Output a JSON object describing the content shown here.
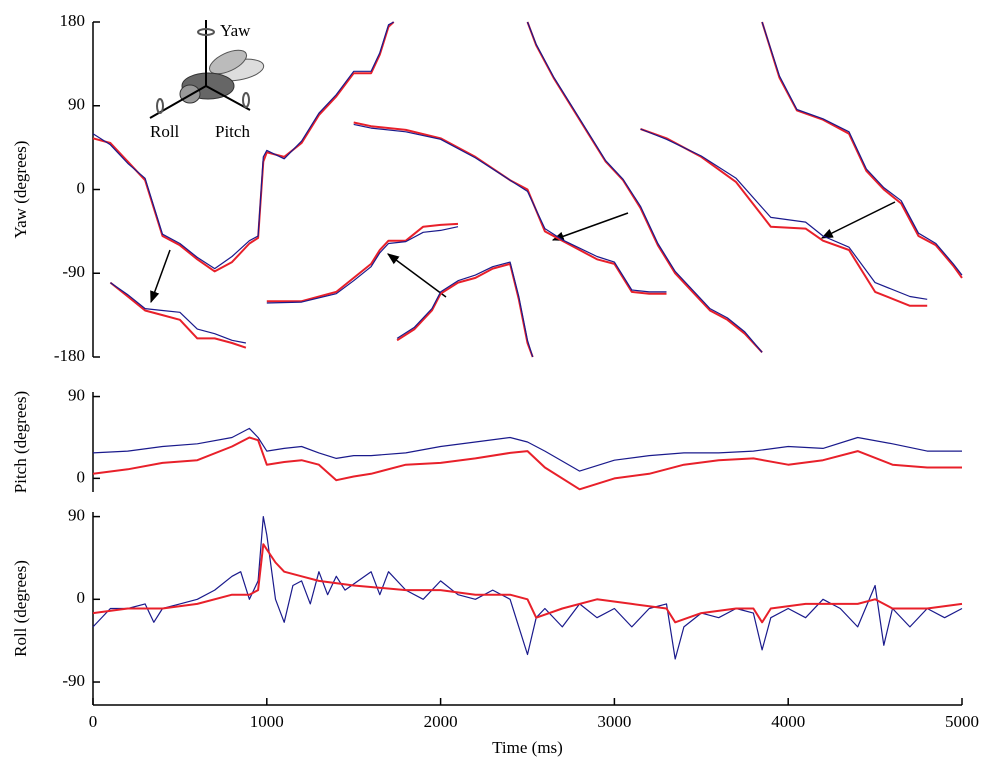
{
  "chart_data": [
    {
      "type": "line",
      "ylabel": "Yaw (degrees)",
      "annotations": [
        "Yaw",
        "Roll",
        "Pitch"
      ],
      "xlim": [
        0,
        5000
      ],
      "ylim": [
        -180,
        180
      ],
      "yticks": [
        180,
        90,
        0,
        -90,
        -180
      ],
      "series": [
        {
          "color": "#e8202a",
          "x": [
            0,
            100,
            200,
            300,
            350,
            400,
            500,
            600,
            700,
            800,
            900,
            950,
            980,
            1000,
            1100,
            1200,
            1300,
            1400,
            1500,
            1600,
            1650,
            1700,
            1730
          ],
          "values": [
            55,
            50,
            30,
            10,
            -20,
            -50,
            -60,
            -75,
            -88,
            -78,
            -58,
            -52,
            30,
            40,
            35,
            50,
            80,
            100,
            125,
            125,
            145,
            175,
            180
          ]
        },
        {
          "color": "#1a1a8c",
          "x": [
            0,
            100,
            200,
            300,
            350,
            400,
            500,
            600,
            700,
            800,
            900,
            950,
            980,
            1000,
            1100,
            1200,
            1300,
            1400,
            1500,
            1600,
            1650,
            1700,
            1730
          ],
          "values": [
            60,
            48,
            28,
            12,
            -18,
            -48,
            -58,
            -73,
            -85,
            -72,
            -55,
            -50,
            35,
            42,
            33,
            52,
            82,
            102,
            127,
            127,
            147,
            177,
            180
          ]
        },
        {
          "color": "#e8202a",
          "x": [
            100,
            200,
            300,
            400,
            500,
            600,
            700,
            800,
            880
          ],
          "values": [
            -100,
            -115,
            -130,
            -135,
            -140,
            -160,
            -160,
            -165,
            -170
          ]
        },
        {
          "color": "#1a1a8c",
          "x": [
            100,
            200,
            300,
            400,
            500,
            600,
            700,
            800,
            880
          ],
          "values": [
            -100,
            -113,
            -128,
            -130,
            -132,
            -150,
            -155,
            -162,
            -165
          ]
        },
        {
          "color": "#e8202a",
          "x": [
            1000,
            1200,
            1400,
            1500,
            1600,
            1650,
            1700,
            1800,
            1900,
            2000,
            2100
          ],
          "values": [
            -120,
            -120,
            -110,
            -95,
            -80,
            -65,
            -55,
            -55,
            -40,
            -38,
            -37
          ]
        },
        {
          "color": "#1a1a8c",
          "x": [
            1000,
            1200,
            1400,
            1500,
            1600,
            1650,
            1700,
            1800,
            1900,
            2000,
            2100
          ],
          "values": [
            -122,
            -121,
            -112,
            -98,
            -83,
            -68,
            -58,
            -56,
            -46,
            -44,
            -40
          ]
        },
        {
          "color": "#e8202a",
          "x": [
            1750,
            1850,
            1950,
            2000,
            2100,
            2200,
            2300,
            2400,
            2450,
            2500,
            2530
          ],
          "values": [
            -162,
            -150,
            -130,
            -112,
            -100,
            -95,
            -85,
            -80,
            -118,
            -165,
            -180
          ]
        },
        {
          "color": "#1a1a8c",
          "x": [
            1750,
            1850,
            1950,
            2000,
            2100,
            2200,
            2300,
            2400,
            2450,
            2500,
            2530
          ],
          "values": [
            -160,
            -148,
            -128,
            -110,
            -98,
            -92,
            -83,
            -78,
            -115,
            -162,
            -180
          ]
        },
        {
          "color": "#e8202a",
          "x": [
            1500,
            1600,
            1800,
            2000,
            2200,
            2400,
            2500,
            2600,
            2700,
            2900,
            3000,
            3100,
            3200,
            3300
          ],
          "values": [
            72,
            68,
            64,
            55,
            35,
            10,
            0,
            -45,
            -55,
            -75,
            -80,
            -110,
            -112,
            -112
          ]
        },
        {
          "color": "#1a1a8c",
          "x": [
            1500,
            1600,
            1800,
            2000,
            2200,
            2400,
            2500,
            2600,
            2700,
            2900,
            3000,
            3100,
            3200,
            3300
          ],
          "values": [
            70,
            66,
            62,
            54,
            34,
            10,
            -2,
            -42,
            -54,
            -72,
            -78,
            -108,
            -110,
            -110
          ]
        },
        {
          "color": "#e8202a",
          "x": [
            2500,
            2550,
            2650,
            2750,
            2850,
            2950,
            3050,
            3150,
            3250,
            3350,
            3450,
            3550,
            3650,
            3750,
            3850
          ],
          "values": [
            180,
            155,
            120,
            90,
            60,
            30,
            10,
            -20,
            -60,
            -90,
            -110,
            -130,
            -140,
            -155,
            -175
          ]
        },
        {
          "color": "#1a1a8c",
          "x": [
            2500,
            2550,
            2650,
            2750,
            2850,
            2950,
            3050,
            3150,
            3250,
            3350,
            3450,
            3550,
            3650,
            3750,
            3850
          ],
          "values": [
            180,
            156,
            121,
            91,
            61,
            31,
            11,
            -18,
            -58,
            -88,
            -108,
            -128,
            -138,
            -153,
            -175
          ]
        },
        {
          "color": "#e8202a",
          "x": [
            3150,
            3300,
            3500,
            3700,
            3900,
            4100,
            4200,
            4350,
            4500,
            4700,
            4800
          ],
          "values": [
            65,
            55,
            35,
            8,
            -40,
            -42,
            -55,
            -65,
            -110,
            -125,
            -125
          ]
        },
        {
          "color": "#1a1a8c",
          "x": [
            3150,
            3300,
            3500,
            3700,
            3900,
            4100,
            4200,
            4350,
            4500,
            4700,
            4800
          ],
          "values": [
            65,
            54,
            36,
            12,
            -30,
            -35,
            -50,
            -62,
            -100,
            -115,
            -118
          ]
        },
        {
          "color": "#e8202a",
          "x": [
            3850,
            3950,
            4050,
            4200,
            4350,
            4450,
            4550,
            4650,
            4750,
            4850,
            4950,
            5000
          ],
          "values": [
            180,
            120,
            85,
            75,
            60,
            20,
            0,
            -15,
            -50,
            -60,
            -82,
            -95
          ]
        },
        {
          "color": "#1a1a8c",
          "x": [
            3850,
            3950,
            4050,
            4200,
            4350,
            4450,
            4550,
            4650,
            4750,
            4850,
            4950,
            5000
          ],
          "values": [
            180,
            122,
            86,
            76,
            62,
            22,
            2,
            -12,
            -47,
            -58,
            -80,
            -92
          ]
        }
      ]
    },
    {
      "type": "line",
      "ylabel": "Pitch (degrees)",
      "xlim": [
        0,
        5000
      ],
      "ylim": [
        -15,
        95
      ],
      "yticks": [
        90,
        0
      ],
      "series": [
        {
          "color": "#1a1a8c",
          "x": [
            0,
            200,
            400,
            600,
            800,
            900,
            950,
            1000,
            1100,
            1200,
            1300,
            1400,
            1500,
            1600,
            1800,
            2000,
            2200,
            2400,
            2500,
            2600,
            2800,
            3000,
            3200,
            3400,
            3600,
            3800,
            4000,
            4200,
            4400,
            4600,
            4800,
            5000
          ],
          "values": [
            28,
            30,
            35,
            38,
            45,
            55,
            45,
            30,
            33,
            35,
            28,
            22,
            25,
            25,
            28,
            35,
            40,
            45,
            40,
            30,
            8,
            20,
            25,
            28,
            28,
            30,
            35,
            33,
            45,
            38,
            30,
            30
          ]
        },
        {
          "color": "#e8202a",
          "x": [
            0,
            200,
            400,
            600,
            800,
            900,
            950,
            1000,
            1100,
            1200,
            1300,
            1400,
            1500,
            1600,
            1800,
            2000,
            2200,
            2400,
            2500,
            2600,
            2800,
            3000,
            3200,
            3400,
            3600,
            3800,
            4000,
            4200,
            4400,
            4600,
            4800,
            5000
          ],
          "values": [
            5,
            10,
            17,
            20,
            35,
            45,
            42,
            15,
            18,
            20,
            15,
            -2,
            2,
            5,
            15,
            17,
            22,
            28,
            30,
            12,
            -12,
            0,
            5,
            15,
            20,
            22,
            15,
            20,
            30,
            15,
            12,
            12
          ]
        }
      ]
    },
    {
      "type": "line",
      "ylabel": "Roll (degrees)",
      "xlabel": "Time (ms)",
      "xlim": [
        0,
        5000
      ],
      "ylim": [
        -115,
        95
      ],
      "yticks": [
        90,
        0,
        -90
      ],
      "xticks": [
        0,
        1000,
        2000,
        3000,
        4000,
        5000
      ],
      "series": [
        {
          "color": "#1a1a8c",
          "x": [
            0,
            100,
            200,
            300,
            350,
            400,
            500,
            600,
            700,
            800,
            850,
            900,
            950,
            980,
            1000,
            1050,
            1100,
            1150,
            1200,
            1250,
            1300,
            1350,
            1400,
            1450,
            1600,
            1650,
            1700,
            1800,
            1900,
            2000,
            2100,
            2200,
            2300,
            2400,
            2450,
            2500,
            2550,
            2600,
            2700,
            2800,
            2900,
            3000,
            3100,
            3200,
            3300,
            3350,
            3400,
            3500,
            3600,
            3700,
            3800,
            3850,
            3900,
            4000,
            4100,
            4200,
            4300,
            4400,
            4500,
            4550,
            4600,
            4700,
            4800,
            4900,
            5000
          ],
          "values": [
            -30,
            -10,
            -10,
            -5,
            -25,
            -10,
            -5,
            0,
            10,
            25,
            30,
            0,
            20,
            90,
            70,
            0,
            -25,
            15,
            20,
            -5,
            30,
            5,
            25,
            10,
            30,
            5,
            30,
            10,
            0,
            20,
            5,
            0,
            10,
            0,
            -30,
            -60,
            -20,
            -10,
            -30,
            -5,
            -20,
            -10,
            -30,
            -10,
            -5,
            -65,
            -30,
            -15,
            -20,
            -10,
            -15,
            -55,
            -20,
            -10,
            -20,
            0,
            -10,
            -30,
            15,
            -50,
            -10,
            -30,
            -10,
            -20,
            -10
          ]
        },
        {
          "color": "#e8202a",
          "x": [
            0,
            200,
            400,
            600,
            800,
            900,
            950,
            980,
            1050,
            1100,
            1200,
            1300,
            1500,
            1800,
            2000,
            2200,
            2400,
            2500,
            2550,
            2700,
            2900,
            3100,
            3300,
            3350,
            3500,
            3700,
            3800,
            3850,
            3900,
            4100,
            4400,
            4500,
            4600,
            4800,
            5000
          ],
          "values": [
            -15,
            -10,
            -10,
            -5,
            5,
            5,
            10,
            60,
            40,
            30,
            25,
            20,
            15,
            10,
            10,
            5,
            5,
            0,
            -20,
            -10,
            0,
            -5,
            -10,
            -25,
            -15,
            -10,
            -10,
            -25,
            -10,
            -5,
            -5,
            0,
            -10,
            -10,
            -5
          ]
        }
      ]
    }
  ]
}
